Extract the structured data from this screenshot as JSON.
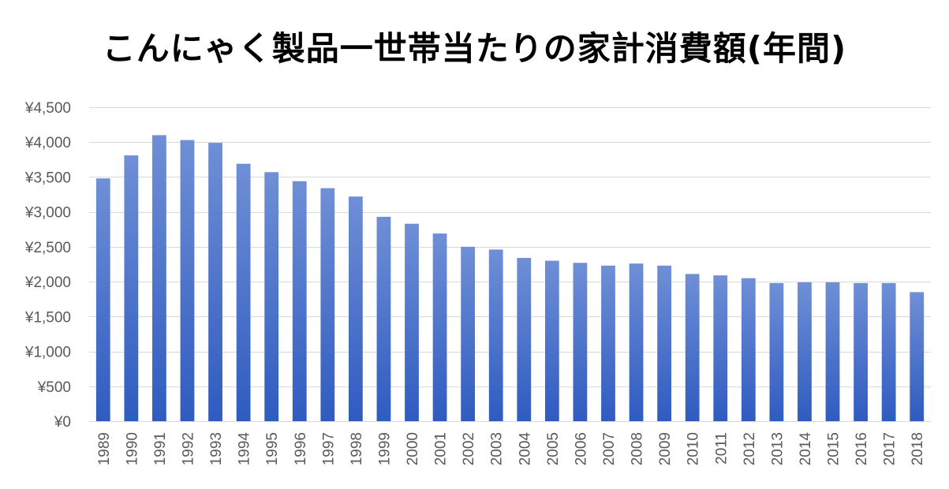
{
  "colors": {
    "bar_top": "#6f8fd6",
    "bar_bottom": "#2f5bc0",
    "gridline": "#d9d9d9",
    "tick_text": "#595959",
    "title_text": "#000000"
  },
  "chart_data": {
    "type": "bar",
    "title": "こんにゃく製品一世帯当たりの家計消費額(年間)",
    "xlabel": "",
    "ylabel": "",
    "ylim": [
      0,
      4500
    ],
    "grid": true,
    "legend": "none",
    "y_ticks": [
      0,
      500,
      1000,
      1500,
      2000,
      2500,
      3000,
      3500,
      4000,
      4500
    ],
    "y_tick_labels": [
      "¥0",
      "¥500",
      "¥1,000",
      "¥1,500",
      "¥2,000",
      "¥2,500",
      "¥3,000",
      "¥3,500",
      "¥4,000",
      "¥4,500"
    ],
    "categories": [
      "1989",
      "1990",
      "1991",
      "1992",
      "1993",
      "1994",
      "1995",
      "1996",
      "1997",
      "1998",
      "1999",
      "2000",
      "2001",
      "2002",
      "2003",
      "2004",
      "2005",
      "2006",
      "2007",
      "2008",
      "2009",
      "2010",
      "2011",
      "2012",
      "2013",
      "2014",
      "2015",
      "2016",
      "2017",
      "2018"
    ],
    "values": [
      3480,
      3810,
      4100,
      4030,
      3990,
      3690,
      3570,
      3440,
      3340,
      3220,
      2930,
      2830,
      2690,
      2500,
      2460,
      2340,
      2300,
      2270,
      2230,
      2260,
      2230,
      2110,
      2090,
      2050,
      1980,
      1990,
      1990,
      1980,
      1980,
      1850
    ]
  }
}
